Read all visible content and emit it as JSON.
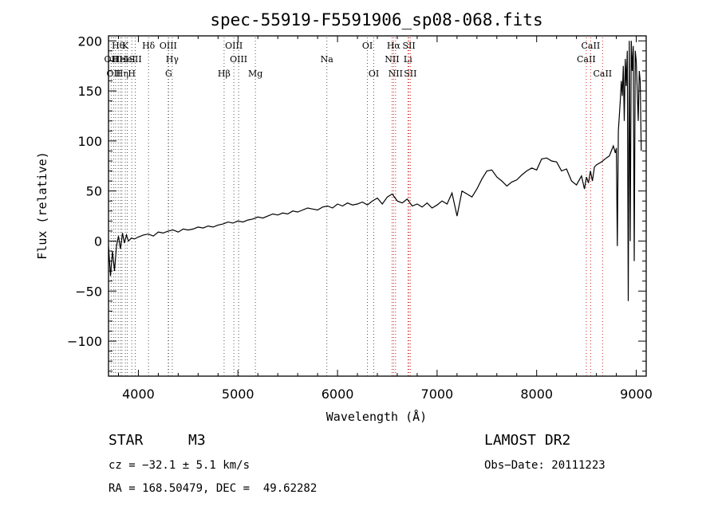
{
  "chart_data": {
    "type": "line",
    "title": "spec-55919-F5591906_sp08-068.fits",
    "xlabel": "Wavelength (Å)",
    "ylabel": "Flux (relative)",
    "xlim": [
      3700,
      9100
    ],
    "ylim": [
      -135,
      205
    ],
    "x_ticks": [
      4000,
      5000,
      6000,
      7000,
      8000,
      9000
    ],
    "y_ticks": [
      -100,
      -50,
      0,
      50,
      100,
      150,
      200
    ],
    "y_tick_labels": [
      "−100",
      "−50",
      "0",
      "50",
      "100",
      "150",
      "200"
    ],
    "grid": false,
    "series": [
      {
        "x": [
          3700,
          3720,
          3740,
          3760,
          3780,
          3800,
          3820,
          3840,
          3860,
          3880,
          3900,
          3930,
          3960,
          4000,
          4050,
          4100,
          4150,
          4200,
          4250,
          4300,
          4350,
          4400,
          4450,
          4500,
          4550,
          4600,
          4650,
          4700,
          4750,
          4800,
          4850,
          4900,
          4950,
          5000,
          5050,
          5100,
          5150,
          5200,
          5250,
          5300,
          5350,
          5400,
          5450,
          5500,
          5550,
          5600,
          5650,
          5700,
          5750,
          5800,
          5850,
          5900,
          5950,
          6000,
          6050,
          6100,
          6150,
          6200,
          6250,
          6300,
          6350,
          6400,
          6450,
          6500,
          6550,
          6600,
          6650,
          6700,
          6750,
          6800,
          6850,
          6900,
          6950,
          7000,
          7050,
          7100,
          7150,
          7200,
          7250,
          7300,
          7350,
          7400,
          7450,
          7500,
          7550,
          7600,
          7650,
          7700,
          7750,
          7800,
          7850,
          7900,
          7950,
          8000,
          8050,
          8100,
          8150,
          8200,
          8250,
          8300,
          8350,
          8400,
          8450,
          8480,
          8500,
          8520,
          8540,
          8560,
          8580,
          8600,
          8650,
          8700,
          8730,
          8750,
          8770,
          8790,
          8800,
          8810,
          8820,
          8840,
          8850,
          8860,
          8870,
          8880,
          8890,
          8900,
          8910,
          8920,
          8930,
          8940,
          8950,
          8960,
          8970,
          8980,
          8990,
          9000,
          9010,
          9020,
          9030,
          9040,
          9050
        ],
        "y": [
          -5,
          -35,
          -10,
          -30,
          -5,
          5,
          -8,
          8,
          -2,
          6,
          0,
          3,
          2,
          4,
          6,
          7,
          5,
          9,
          8,
          10,
          11,
          9,
          12,
          11,
          12,
          14,
          13,
          15,
          14,
          16,
          17,
          19,
          18,
          20,
          19,
          21,
          22,
          24,
          23,
          25,
          27,
          26,
          28,
          27,
          30,
          29,
          31,
          33,
          32,
          31,
          34,
          35,
          33,
          37,
          35,
          38,
          36,
          37,
          39,
          36,
          40,
          43,
          37,
          44,
          47,
          40,
          38,
          42,
          35,
          37,
          34,
          38,
          33,
          36,
          40,
          37,
          48,
          25,
          50,
          47,
          44,
          52,
          62,
          70,
          71,
          64,
          60,
          55,
          59,
          61,
          66,
          70,
          73,
          71,
          82,
          83,
          80,
          79,
          70,
          72,
          60,
          56,
          65,
          52,
          64,
          58,
          70,
          60,
          74,
          76,
          79,
          83,
          85,
          90,
          95,
          88,
          93,
          -5,
          110,
          140,
          160,
          145,
          175,
          120,
          182,
          155,
          190,
          -60,
          200,
          0,
          200,
          170,
          195,
          -20,
          190,
          180,
          150,
          120,
          170,
          160,
          90
        ]
      }
    ],
    "spectral_lines": [
      {
        "wl": 3727,
        "label": "OII",
        "row": 1
      },
      {
        "wl": 3751,
        "label": "OII",
        "row": 2
      },
      {
        "wl": 3771,
        "label": "H",
        "row": 1
      },
      {
        "wl": 3798,
        "label": "Hθ",
        "row": 0
      },
      {
        "wl": 3820,
        "label": "HeI",
        "row": 1
      },
      {
        "wl": 3835,
        "label": "Hη",
        "row": 2
      },
      {
        "wl": 3869,
        "label": "K",
        "row": 0
      },
      {
        "wl": 3889,
        "label": "HeI",
        "row": 1
      },
      {
        "wl": 3934,
        "label": "H",
        "row": 2
      },
      {
        "wl": 3969,
        "label": "SII",
        "row": 1
      },
      {
        "wl": 4102,
        "label": "Hδ",
        "row": 0
      },
      {
        "wl": 4300,
        "label": "OIII",
        "row": 0
      },
      {
        "wl": 4340,
        "label": "Hγ",
        "row": 1
      },
      {
        "wl": 4304,
        "label": "G",
        "row": 2
      },
      {
        "wl": 4861,
        "label": "Hβ",
        "row": 2
      },
      {
        "wl": 4959,
        "label": "OIII",
        "row": 0
      },
      {
        "wl": 5007,
        "label": "OIII",
        "row": 1
      },
      {
        "wl": 5175,
        "label": "Mg",
        "row": 2
      },
      {
        "wl": 5893,
        "label": "Na",
        "row": 1
      },
      {
        "wl": 6300,
        "label": "OI",
        "row": 0
      },
      {
        "wl": 6364,
        "label": "OI",
        "row": 2
      },
      {
        "wl": 6548,
        "label": "NII",
        "row": 1
      },
      {
        "wl": 6563,
        "label": "Hα",
        "row": 0
      },
      {
        "wl": 6583,
        "label": "NII",
        "row": 2
      },
      {
        "wl": 6707,
        "label": "Li",
        "row": 1
      },
      {
        "wl": 6717,
        "label": "SII",
        "row": 0
      },
      {
        "wl": 6731,
        "label": "SII",
        "row": 2
      },
      {
        "wl": 8498,
        "label": "CaII",
        "row": 1
      },
      {
        "wl": 8542,
        "label": "CaII",
        "row": 0
      },
      {
        "wl": 8662,
        "label": "CaII",
        "row": 2
      }
    ]
  },
  "info": {
    "object_class": "STAR",
    "subclass": "M3",
    "survey": "LAMOST DR2",
    "velocity": "cz = −32.1 ± 5.1 km/s",
    "obs_date": "Obs−Date: 20111223",
    "coords": "RA = 168.50479, DEC =  49.62282"
  }
}
